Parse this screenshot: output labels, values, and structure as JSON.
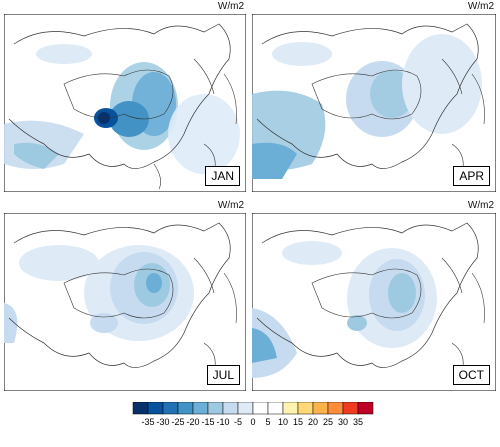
{
  "unit_label": "W/m2",
  "panels": [
    {
      "month": "JAN"
    },
    {
      "month": "APR"
    },
    {
      "month": "JUL"
    },
    {
      "month": "OCT"
    }
  ],
  "colorbar": {
    "ticks": [
      "-35",
      "-30",
      "-25",
      "-20",
      "-15",
      "-10",
      "-5",
      "0",
      "5",
      "10",
      "15",
      "20",
      "25",
      "30",
      "35"
    ],
    "colors": [
      "#08306b",
      "#08519c",
      "#2171b5",
      "#4292c6",
      "#6baed6",
      "#9ecae1",
      "#c6dbef",
      "#deebf7",
      "#ffffff",
      "#ffffff",
      "#fff3b0",
      "#fed976",
      "#feb24c",
      "#fd8d3c",
      "#f03b20",
      "#bd0026"
    ]
  }
}
